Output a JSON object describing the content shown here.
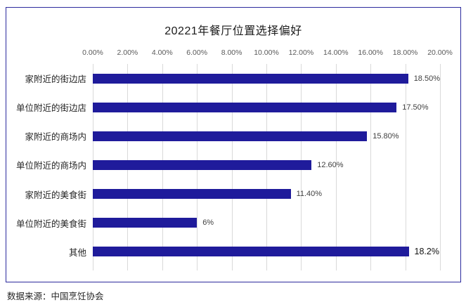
{
  "chart_data": {
    "type": "bar",
    "orientation": "horizontal",
    "title": "20221年餐厅位置选择偏好",
    "categories": [
      "家附近的街边店",
      "单位附近的街边店",
      "家附近的商场内",
      "单位附近的商场内",
      "家附近的美食街",
      "单位附近的美食街",
      "其他"
    ],
    "values": [
      18.5,
      17.5,
      15.8,
      12.6,
      11.4,
      6,
      18.2
    ],
    "value_labels": [
      "18.50%",
      "17.50%",
      "15.80%",
      "12.60%",
      "11.40%",
      "6%",
      "18.2%"
    ],
    "axis_ticks": [
      "0.00%",
      "2.00%",
      "4.00%",
      "6.00%",
      "8.00%",
      "10.00%",
      "12.00%",
      "14.00%",
      "16.00%",
      "18.00%",
      "20.00%"
    ],
    "xlim": [
      0,
      20
    ],
    "grid": true,
    "legend_position": "none",
    "axis_position": "top"
  },
  "colors": {
    "bar": "#1f1b9b",
    "frame_border": "#2b2a9d",
    "gridline": "#d9d9d9",
    "tick_label": "#595959",
    "value_label": "#404040",
    "title": "#1a1a1a"
  },
  "source_note": "数据来源：中国烹饪协会"
}
